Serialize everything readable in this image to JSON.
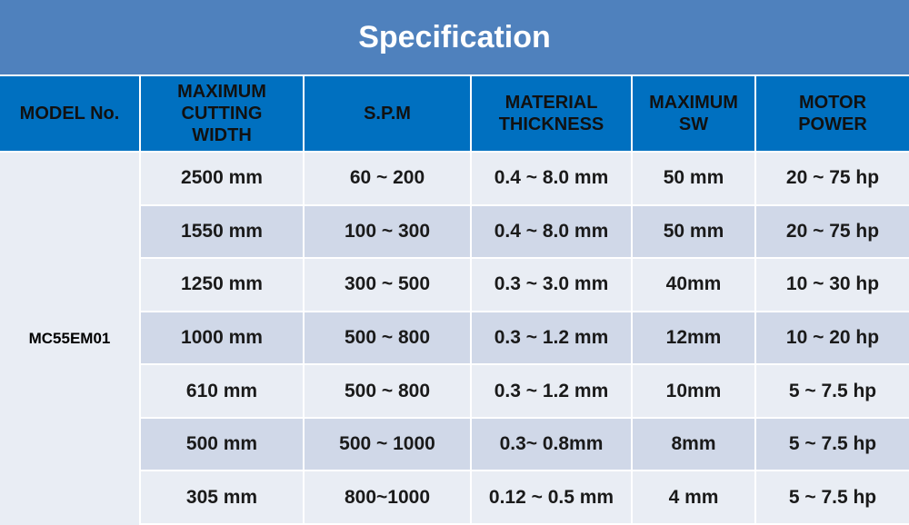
{
  "header": {
    "title": "Specification"
  },
  "table": {
    "columns": [
      [
        "MODEL No."
      ],
      [
        "MAXIMUM",
        "CUTTING",
        "WIDTH"
      ],
      [
        "S.P.M"
      ],
      [
        "MATERIAL",
        "THICKNESS"
      ],
      [
        "MAXIMUM",
        "SW"
      ],
      [
        "MOTOR",
        "POWER"
      ]
    ],
    "model": "MC55EM01",
    "rows": [
      [
        "2500 mm",
        "60 ~ 200",
        "0.4 ~ 8.0 mm",
        "50 mm",
        "20 ~ 75 hp"
      ],
      [
        "1550 mm",
        "100 ~ 300",
        "0.4 ~ 8.0 mm",
        "50 mm",
        "20 ~ 75 hp"
      ],
      [
        "1250 mm",
        "300 ~ 500",
        "0.3 ~ 3.0 mm",
        "40mm",
        "10 ~ 30 hp"
      ],
      [
        "1000 mm",
        "500 ~ 800",
        "0.3 ~ 1.2 mm",
        "12mm",
        "10 ~ 20 hp"
      ],
      [
        "610 mm",
        "500 ~ 800",
        "0.3 ~ 1.2 mm",
        "10mm",
        "5 ~ 7.5 hp"
      ],
      [
        "500 mm",
        "500 ~ 1000",
        "0.3~ 0.8mm",
        "8mm",
        "5 ~ 7.5 hp"
      ],
      [
        "305 mm",
        "800~1000",
        "0.12 ~ 0.5 mm",
        "4 mm",
        "5 ~ 7.5 hp"
      ]
    ]
  }
}
